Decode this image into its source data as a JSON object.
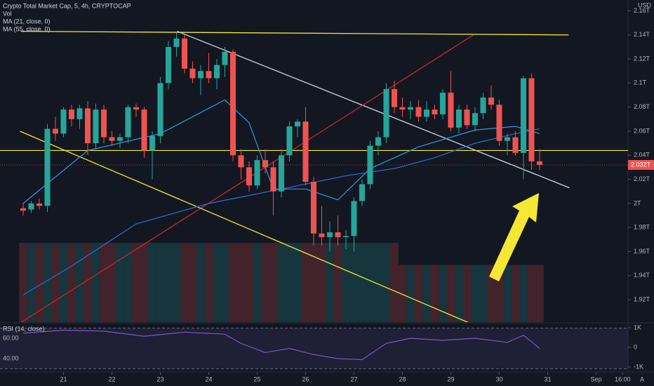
{
  "chart_data": {
    "type": "candlestick",
    "title": "Crypto Total Market Cap, 5, 4h, CRYPTOCAP",
    "volume_name": "Vol",
    "currency": "USD",
    "corner_label": "A",
    "colors": {
      "up": "#26a69a",
      "down": "#ef5350"
    },
    "candles": [
      [
        1.996,
        2.0,
        1.99,
        1.994
      ],
      [
        1.995,
        2.002,
        1.992,
        2.0
      ],
      [
        2.0,
        2.004,
        1.995,
        1.998
      ],
      [
        1.998,
        2.066,
        1.993,
        2.062
      ],
      [
        2.062,
        2.072,
        2.052,
        2.058
      ],
      [
        2.058,
        2.08,
        2.055,
        2.078
      ],
      [
        2.078,
        2.082,
        2.064,
        2.07
      ],
      [
        2.07,
        2.082,
        2.062,
        2.079
      ],
      [
        2.079,
        2.085,
        2.04,
        2.05
      ],
      [
        2.05,
        2.083,
        2.045,
        2.078
      ],
      [
        2.078,
        2.082,
        2.05,
        2.055
      ],
      [
        2.055,
        2.06,
        2.048,
        2.052
      ],
      [
        2.052,
        2.058,
        2.046,
        2.055
      ],
      [
        2.055,
        2.082,
        2.05,
        2.08
      ],
      [
        2.08,
        2.083,
        2.072,
        2.078
      ],
      [
        2.078,
        2.08,
        2.038,
        2.044
      ],
      [
        2.044,
        2.06,
        2.02,
        2.056
      ],
      [
        2.056,
        2.105,
        2.05,
        2.1
      ],
      [
        2.1,
        2.135,
        2.095,
        2.13
      ],
      [
        2.13,
        2.142,
        2.122,
        2.137
      ],
      [
        2.137,
        2.14,
        2.108,
        2.112
      ],
      [
        2.112,
        2.118,
        2.1,
        2.104
      ],
      [
        2.104,
        2.115,
        2.09,
        2.11
      ],
      [
        2.11,
        2.125,
        2.1,
        2.104
      ],
      [
        2.104,
        2.12,
        2.095,
        2.115
      ],
      [
        2.115,
        2.13,
        2.105,
        2.126
      ],
      [
        2.126,
        2.128,
        2.035,
        2.04
      ],
      [
        2.04,
        2.045,
        2.02,
        2.03
      ],
      [
        2.03,
        2.035,
        2.01,
        2.015
      ],
      [
        2.015,
        2.04,
        2.012,
        2.036
      ],
      [
        2.036,
        2.045,
        2.025,
        2.03
      ],
      [
        2.03,
        2.035,
        1.99,
        2.01
      ],
      [
        2.01,
        2.045,
        2.005,
        2.04
      ],
      [
        2.04,
        2.068,
        2.035,
        2.064
      ],
      [
        2.064,
        2.07,
        2.055,
        2.068
      ],
      [
        2.068,
        2.08,
        2.015,
        2.018
      ],
      [
        2.018,
        2.022,
        1.965,
        1.975
      ],
      [
        1.975,
        1.998,
        1.965,
        1.972
      ],
      [
        1.972,
        1.985,
        1.96,
        1.976
      ],
      [
        1.976,
        1.99,
        1.965,
        1.972
      ],
      [
        1.972,
        1.978,
        1.962,
        1.973
      ],
      [
        1.973,
        2.005,
        1.96,
        2.002
      ],
      [
        2.002,
        2.02,
        1.998,
        2.016
      ],
      [
        2.016,
        2.052,
        2.012,
        2.048
      ],
      [
        2.048,
        2.06,
        2.04,
        2.055
      ],
      [
        2.055,
        2.1,
        2.05,
        2.095
      ],
      [
        2.095,
        2.102,
        2.075,
        2.08
      ],
      [
        2.08,
        2.088,
        2.072,
        2.078
      ],
      [
        2.078,
        2.085,
        2.07,
        2.08
      ],
      [
        2.08,
        2.086,
        2.068,
        2.072
      ],
      [
        2.072,
        2.085,
        2.068,
        2.078
      ],
      [
        2.078,
        2.082,
        2.07,
        2.074
      ],
      [
        2.074,
        2.095,
        2.07,
        2.092
      ],
      [
        2.092,
        2.11,
        2.06,
        2.063
      ],
      [
        2.063,
        2.082,
        2.058,
        2.078
      ],
      [
        2.078,
        2.082,
        2.062,
        2.065
      ],
      [
        2.065,
        2.08,
        2.06,
        2.075
      ],
      [
        2.075,
        2.092,
        2.07,
        2.088
      ],
      [
        2.088,
        2.098,
        2.078,
        2.082
      ],
      [
        2.082,
        2.086,
        2.048,
        2.052
      ],
      [
        2.052,
        2.058,
        2.04,
        2.055
      ],
      [
        2.055,
        2.06,
        2.04,
        2.042
      ],
      [
        2.042,
        2.106,
        2.02,
        2.104
      ],
      [
        2.104,
        2.108,
        2.028,
        2.035
      ],
      [
        2.035,
        2.045,
        2.028,
        2.032
      ]
    ],
    "volume": [
      100,
      100,
      100,
      100,
      100,
      100,
      100,
      100,
      100,
      100,
      100,
      100,
      100,
      100,
      100,
      100,
      100,
      100,
      100,
      100,
      100,
      100,
      100,
      100,
      100,
      100,
      100,
      100,
      100,
      100,
      100,
      100,
      100,
      100,
      100,
      100,
      100,
      100,
      100,
      100,
      100,
      100,
      100,
      100,
      100,
      100,
      100,
      72,
      72,
      72,
      72,
      72,
      72,
      72,
      72,
      72,
      72,
      72,
      72,
      72,
      72,
      72,
      72,
      72,
      72
    ],
    "xlim": [
      -2.87,
      74.96
    ],
    "xticks": [
      {
        "value": 5,
        "label": "21"
      },
      {
        "value": 11,
        "label": "22"
      },
      {
        "value": 17,
        "label": "23"
      },
      {
        "value": 23,
        "label": "24"
      },
      {
        "value": 29,
        "label": "25"
      },
      {
        "value": 35,
        "label": "26"
      },
      {
        "value": 41,
        "label": "27"
      },
      {
        "value": 47,
        "label": "28"
      },
      {
        "value": 53,
        "label": "29"
      },
      {
        "value": 59,
        "label": "30"
      },
      {
        "value": 65,
        "label": "31"
      },
      {
        "value": 71,
        "label": "Sep"
      },
      {
        "value": 74.3,
        "label": "16:00"
      }
    ],
    "ylim": [
      1.902,
      2.169
    ],
    "yticks": [
      {
        "value": 2.16,
        "label": "2.16T"
      },
      {
        "value": 2.14,
        "label": "2.14T"
      },
      {
        "value": 2.12,
        "label": "2.12T"
      },
      {
        "value": 2.1,
        "label": "2.1T"
      },
      {
        "value": 2.08,
        "label": "2.08T"
      },
      {
        "value": 2.06,
        "label": "2.06T"
      },
      {
        "value": 2.04,
        "label": "2.04T"
      },
      {
        "value": 2.02,
        "label": "2.02T"
      },
      {
        "value": 2,
        "label": "2T"
      },
      {
        "value": 1.98,
        "label": "1.98T"
      },
      {
        "value": 1.96,
        "label": "1.96T"
      },
      {
        "value": 1.94,
        "label": "1.94T"
      },
      {
        "value": 1.92,
        "label": "1.92T"
      }
    ],
    "last_price": {
      "value": 2.032,
      "label": "2.032T"
    },
    "series": [
      {
        "name": "MA (21, close, 0)",
        "color": "#2e9be6",
        "x": [
          0,
          8,
          17,
          25,
          28,
          31,
          35,
          39,
          43,
          49,
          56,
          61,
          64
        ],
        "values": [
          2.0,
          2.044,
          2.058,
          2.086,
          2.067,
          2.012,
          2.012,
          2.003,
          2.029,
          2.047,
          2.061,
          2.064,
          2.058
        ]
      },
      {
        "name": "MA (55, close, 0)",
        "color": "#2a6fd6",
        "x": [
          0,
          6,
          14,
          23,
          32,
          40,
          46,
          51,
          56,
          61,
          64
        ],
        "values": [
          1.924,
          1.948,
          1.983,
          2.0,
          2.012,
          2.023,
          2.029,
          2.038,
          2.05,
          2.058,
          2.062
        ]
      }
    ],
    "drawings": [
      {
        "color": "#f5e733",
        "x": [
          -0.26,
          67.6
        ],
        "values": [
          2.143,
          2.14
        ]
      },
      {
        "color": "#d1d4dc",
        "x": [
          19.1,
          67.7
        ],
        "values": [
          2.143,
          2.013
        ]
      },
      {
        "color": "#c62828",
        "x": [
          -0.3,
          55.8
        ],
        "values": [
          1.901,
          2.14
        ]
      },
      {
        "color": "#f5e733",
        "x": [
          -0.4,
          55.2
        ],
        "values": [
          2.06,
          1.901
        ]
      }
    ],
    "hlines": [
      {
        "value": 2.044,
        "color": "#f5e733"
      }
    ],
    "rsi": {
      "title": "RSI (14, close)",
      "color": "#7e57c2",
      "x": [
        0,
        5,
        10,
        15,
        20,
        25,
        27,
        30,
        33,
        36,
        39,
        42,
        45,
        48,
        52,
        56,
        60,
        62,
        64
      ],
      "values": [
        65,
        68,
        67,
        62,
        66,
        64,
        55,
        46,
        50,
        44,
        40,
        39,
        55,
        60,
        58,
        60,
        56,
        63,
        50
      ],
      "ylim": [
        28.3,
        73.1
      ],
      "yticks": [
        {
          "value": 60,
          "label": "60.00"
        },
        {
          "value": 40,
          "label": "40.00"
        }
      ],
      "bands": [
        30,
        70
      ],
      "y2lim": [
        -1182,
        1145
      ],
      "y2ticks": [
        {
          "value": 1000,
          "label": "1K"
        },
        {
          "value": 0,
          "label": "0"
        },
        {
          "value": -1000,
          "label": "-1K"
        }
      ]
    }
  }
}
